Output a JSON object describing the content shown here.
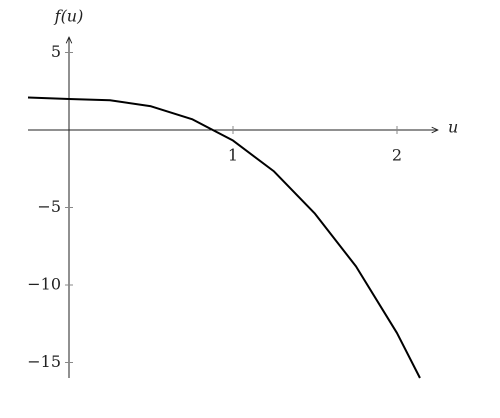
{
  "chart_data": {
    "type": "line",
    "x_label": "u",
    "y_label": "f(u)",
    "x": [
      -0.25,
      0,
      0.25,
      0.5,
      0.75,
      1,
      1.25,
      1.5,
      1.75,
      2,
      2.14
    ],
    "series": [
      {
        "color": "#000000",
        "values": [
          2.1,
          2.0,
          1.92,
          1.53,
          0.7,
          -0.68,
          -2.67,
          -5.4,
          -8.8,
          -13.1,
          -16.0
        ]
      }
    ],
    "xlim": [
      -0.25,
      2.25
    ],
    "ylim": [
      -16,
      6
    ],
    "xticks": [
      1,
      2
    ],
    "yticks": [
      5,
      {
        "value": -5,
        "label": "−5"
      },
      {
        "value": -10,
        "label": "−10"
      },
      {
        "value": -15,
        "label": "−15"
      }
    ],
    "grid": false
  }
}
